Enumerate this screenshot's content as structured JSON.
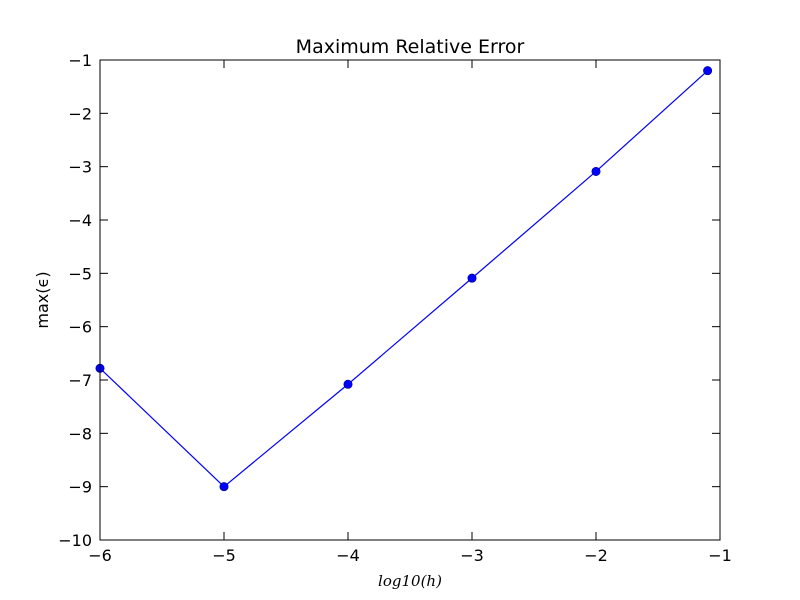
{
  "chart_data": {
    "type": "line",
    "title": "Maximum Relative Error",
    "xlabel": "log10(h)",
    "ylabel": "max(ϵ)",
    "xlim": [
      -6,
      -1
    ],
    "ylim": [
      -10,
      -1
    ],
    "xticks": [
      -6,
      -5,
      -4,
      -3,
      -2,
      -1
    ],
    "yticks": [
      -10,
      -9,
      -8,
      -7,
      -6,
      -5,
      -4,
      -3,
      -2,
      -1
    ],
    "grid": false,
    "series": [
      {
        "x": [
          -6.0,
          -5.0,
          -4.0,
          -3.0,
          -2.0,
          -1.1
        ],
        "y": [
          -6.78,
          -9.0,
          -7.08,
          -5.09,
          -3.09,
          -1.2
        ],
        "color": "#0000ff",
        "marker": "circle"
      }
    ]
  }
}
